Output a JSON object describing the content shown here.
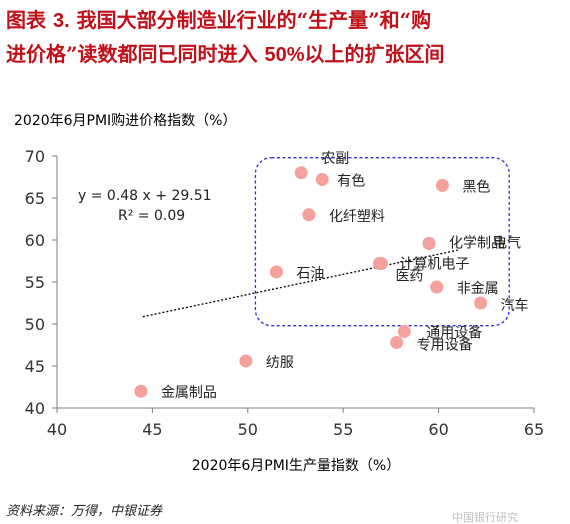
{
  "figure_label": "图表",
  "figure_number": "3.",
  "figure_title_a": "我国大部分制造业行业的“生产量”和“购",
  "figure_title_b": "进价格”读数都同已同时进入",
  "figure_title_num": "50%",
  "figure_title_c": "以上的扩张区间",
  "source": "资料来源：万得，中银证券",
  "watermark": "中国银行研究",
  "colors": {
    "title": "#c0101a",
    "point": "#f4a19c",
    "box": "#2e2ee0",
    "trend": "#000000",
    "axis": "#7f7f7f",
    "text": "#000000"
  },
  "chart_data": {
    "type": "scatter",
    "xlabel": "2020年6月PMI生产量指数（%）",
    "ylabel": "2020年6月PMI购进价格指数（%）",
    "xlim": [
      40,
      65
    ],
    "ylim": [
      40,
      70
    ],
    "x_ticks": [
      40,
      45,
      50,
      55,
      60,
      65
    ],
    "y_ticks": [
      40,
      45,
      50,
      55,
      60,
      65,
      70
    ],
    "grid": false,
    "points": [
      {
        "label": "农副",
        "x": 52.8,
        "y": 68.0
      },
      {
        "label": "有色",
        "x": 53.9,
        "y": 67.2
      },
      {
        "label": "黑色",
        "x": 60.2,
        "y": 66.5
      },
      {
        "label": "化纤塑料",
        "x": 53.2,
        "y": 63.0
      },
      {
        "label": "化学制品",
        "x": 59.5,
        "y": 59.6
      },
      {
        "label": "电气",
        "x": 59.5,
        "y": 59.6
      },
      {
        "label": "医药",
        "x": 56.9,
        "y": 57.2
      },
      {
        "label": "计算机电子",
        "x": 57.0,
        "y": 57.2
      },
      {
        "label": "石油",
        "x": 51.5,
        "y": 56.2
      },
      {
        "label": "非金属",
        "x": 59.9,
        "y": 54.4
      },
      {
        "label": "汽车",
        "x": 62.2,
        "y": 52.5
      },
      {
        "label": "通用设备",
        "x": 58.2,
        "y": 49.1
      },
      {
        "label": "专用设备",
        "x": 57.8,
        "y": 47.8
      },
      {
        "label": "纺服",
        "x": 49.9,
        "y": 45.6
      },
      {
        "label": "金属制品",
        "x": 44.4,
        "y": 42.0
      }
    ],
    "trendline": {
      "slope": 0.48,
      "intercept": 29.51,
      "x_range": [
        44.5,
        61
      ],
      "equation": "y = 0.48 x + 29.51",
      "r2": "R² = 0.09"
    },
    "highlight_region": {
      "x": [
        50.4,
        63.7
      ],
      "y": [
        49.8,
        69.8
      ]
    }
  }
}
